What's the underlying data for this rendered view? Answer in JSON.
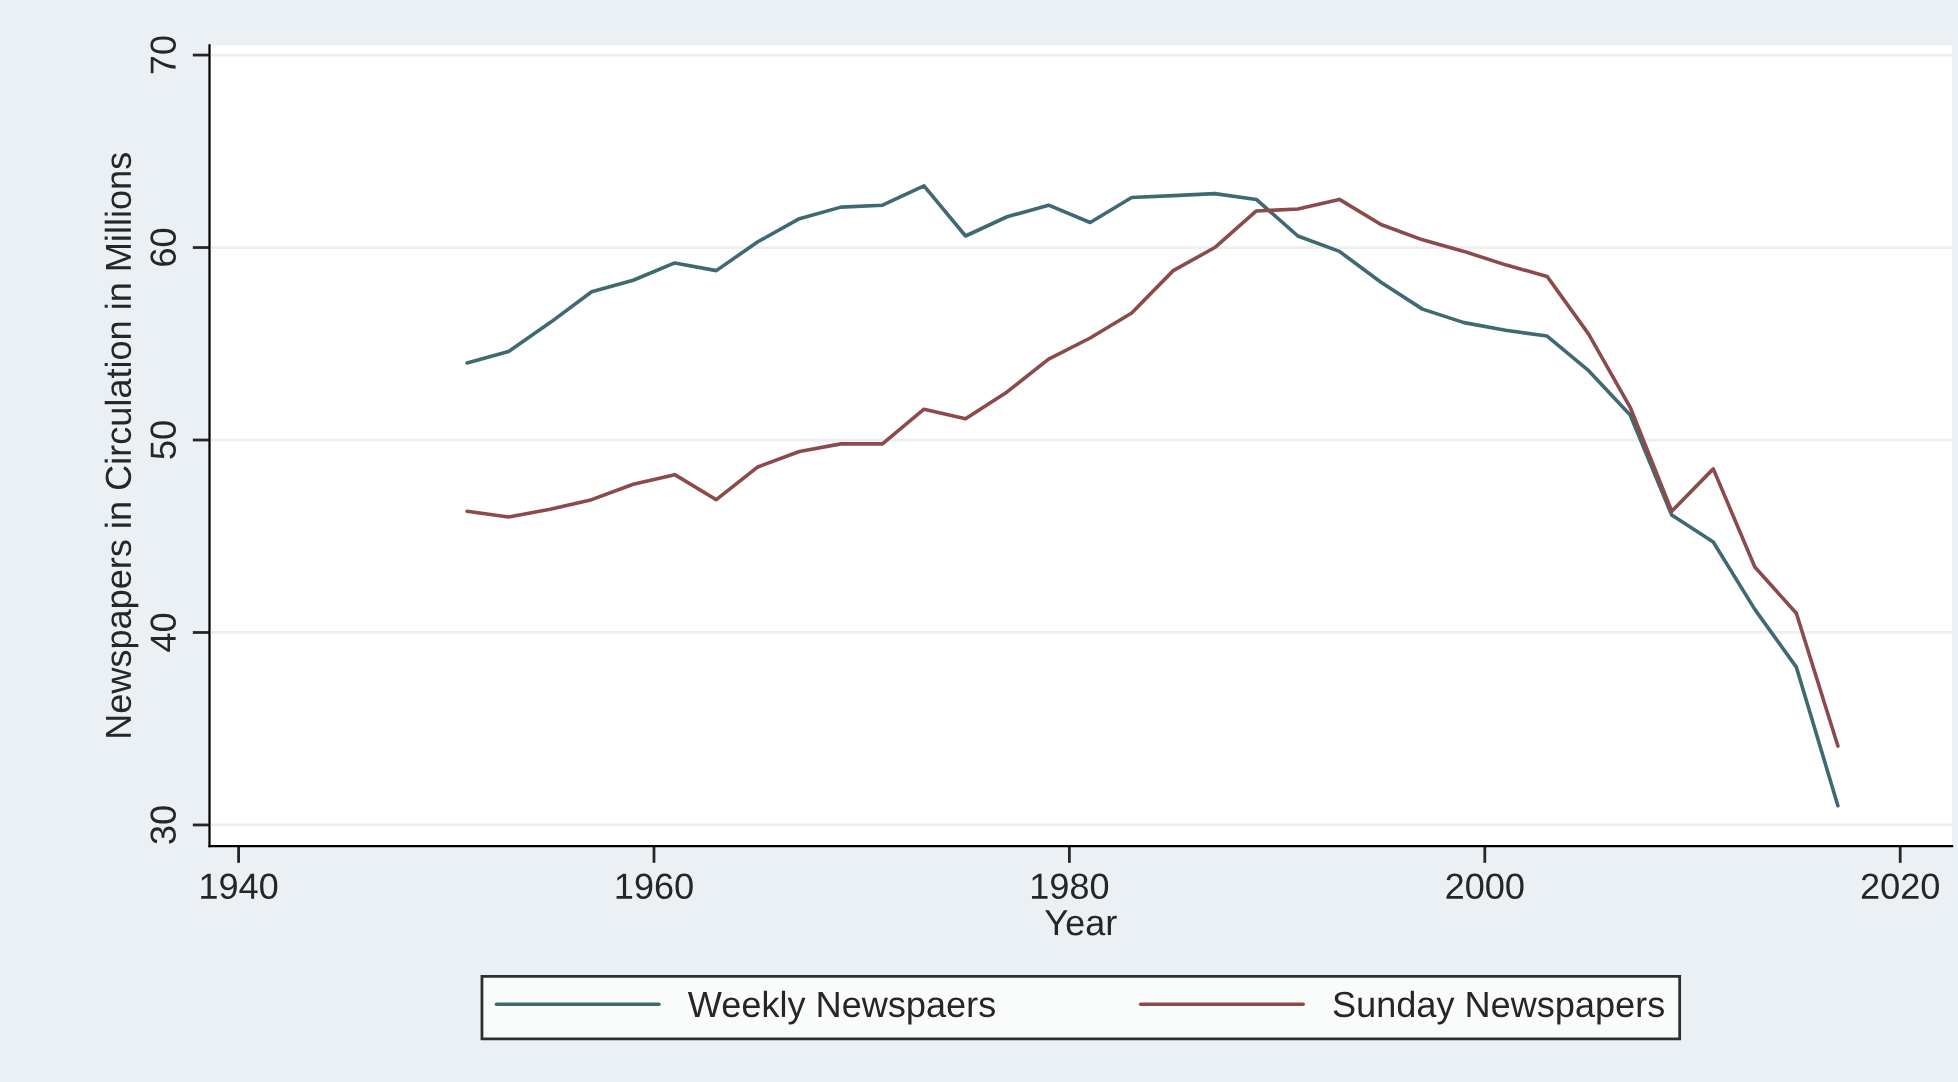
{
  "chart_data": {
    "type": "line",
    "xlabel": "Year",
    "ylabel": "Newspapers in Circulation in Millions",
    "x": [
      1951,
      1953,
      1955,
      1957,
      1959,
      1961,
      1963,
      1965,
      1967,
      1969,
      1971,
      1973,
      1975,
      1977,
      1979,
      1981,
      1983,
      1985,
      1987,
      1989,
      1991,
      1993,
      1995,
      1997,
      1999,
      2001,
      2003,
      2005,
      2007,
      2009,
      2011,
      2013,
      2015,
      2017
    ],
    "series": [
      {
        "name": "Weekly Newspaers",
        "color": "#3f6a72",
        "values": [
          54.0,
          54.6,
          56.1,
          57.7,
          58.3,
          59.2,
          58.8,
          60.3,
          61.5,
          62.1,
          62.2,
          63.2,
          60.6,
          61.6,
          62.2,
          61.3,
          62.6,
          62.7,
          62.8,
          62.5,
          60.6,
          59.8,
          58.2,
          56.8,
          56.1,
          55.7,
          55.4,
          53.6,
          51.3,
          46.1,
          44.7,
          41.2,
          38.2,
          31.0
        ]
      },
      {
        "name": "Sunday Newspapers",
        "color": "#8c4b4b",
        "values": [
          46.3,
          46.0,
          46.4,
          46.9,
          47.7,
          48.2,
          46.9,
          48.6,
          49.4,
          49.8,
          49.8,
          51.6,
          51.1,
          52.5,
          54.2,
          55.3,
          56.6,
          58.8,
          60.0,
          61.9,
          62.0,
          62.5,
          61.2,
          60.4,
          59.8,
          59.1,
          58.5,
          55.5,
          51.7,
          46.3,
          48.5,
          43.4,
          41.0,
          34.1
        ]
      }
    ],
    "xlim": [
      1938.6,
      2022.5
    ],
    "xticks": [
      1940,
      1960,
      1980,
      2000,
      2020
    ],
    "ylim": [
      28.9,
      70.5
    ],
    "yticks": [
      30,
      40,
      50,
      60,
      70
    ],
    "grid": "y",
    "legend": "bottom",
    "marker": "none",
    "line_style": "solid"
  }
}
